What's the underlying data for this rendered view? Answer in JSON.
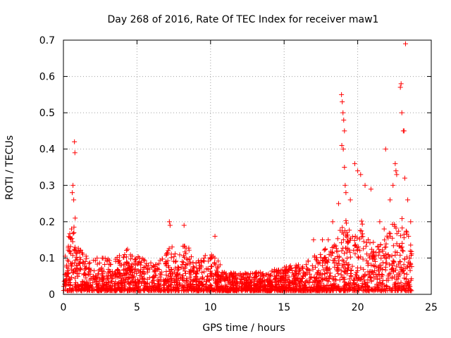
{
  "chart_data": {
    "type": "scatter",
    "title": "Day 268 of 2016, Rate Of TEC Index for receiver maw1",
    "xlabel": "GPS time / hours",
    "ylabel": "ROTI / TECUs",
    "xlim": [
      0,
      25
    ],
    "ylim": [
      0,
      0.7
    ],
    "x_ticks": [
      0,
      5,
      10,
      15,
      20,
      25
    ],
    "x_tick_labels": [
      "0",
      "5",
      "10",
      "15",
      "20",
      "25"
    ],
    "y_ticks": [
      0,
      0.1,
      0.2,
      0.3,
      0.4,
      0.5,
      0.6,
      0.7
    ],
    "y_tick_labels": [
      "0",
      "0.1",
      "0.2",
      "0.3",
      "0.4",
      "0.5",
      "0.6",
      "0.7"
    ],
    "grid": true,
    "marker": "plus",
    "color": "#ff0000",
    "series": [
      {
        "points": [
          [
            0.6,
            0.28
          ],
          [
            0.65,
            0.3
          ],
          [
            0.7,
            0.26
          ],
          [
            0.75,
            0.42
          ],
          [
            0.78,
            0.39
          ],
          [
            0.8,
            0.21
          ],
          [
            0.55,
            0.18
          ],
          [
            7.2,
            0.2
          ],
          [
            7.25,
            0.19
          ],
          [
            8.2,
            0.19
          ],
          [
            10.3,
            0.16
          ],
          [
            17.0,
            0.15
          ],
          [
            17.6,
            0.15
          ],
          [
            18.0,
            0.15
          ],
          [
            18.3,
            0.2
          ],
          [
            18.7,
            0.25
          ],
          [
            18.9,
            0.55
          ],
          [
            18.95,
            0.53
          ],
          [
            19.0,
            0.5
          ],
          [
            19.05,
            0.48
          ],
          [
            19.1,
            0.45
          ],
          [
            18.92,
            0.41
          ],
          [
            19.02,
            0.4
          ],
          [
            19.1,
            0.35
          ],
          [
            19.15,
            0.3
          ],
          [
            19.2,
            0.28
          ],
          [
            19.5,
            0.26
          ],
          [
            19.8,
            0.36
          ],
          [
            20.0,
            0.34
          ],
          [
            20.2,
            0.33
          ],
          [
            20.5,
            0.3
          ],
          [
            20.9,
            0.29
          ],
          [
            21.5,
            0.2
          ],
          [
            21.8,
            0.18
          ],
          [
            21.9,
            0.4
          ],
          [
            22.2,
            0.26
          ],
          [
            22.4,
            0.3
          ],
          [
            22.55,
            0.36
          ],
          [
            22.6,
            0.34
          ],
          [
            22.65,
            0.33
          ],
          [
            22.9,
            0.57
          ],
          [
            22.95,
            0.58
          ],
          [
            23.0,
            0.5
          ],
          [
            23.1,
            0.45
          ],
          [
            23.15,
            0.45
          ],
          [
            23.2,
            0.32
          ],
          [
            23.25,
            0.69
          ],
          [
            23.4,
            0.26
          ],
          [
            23.6,
            0.2
          ]
        ]
      }
    ]
  }
}
